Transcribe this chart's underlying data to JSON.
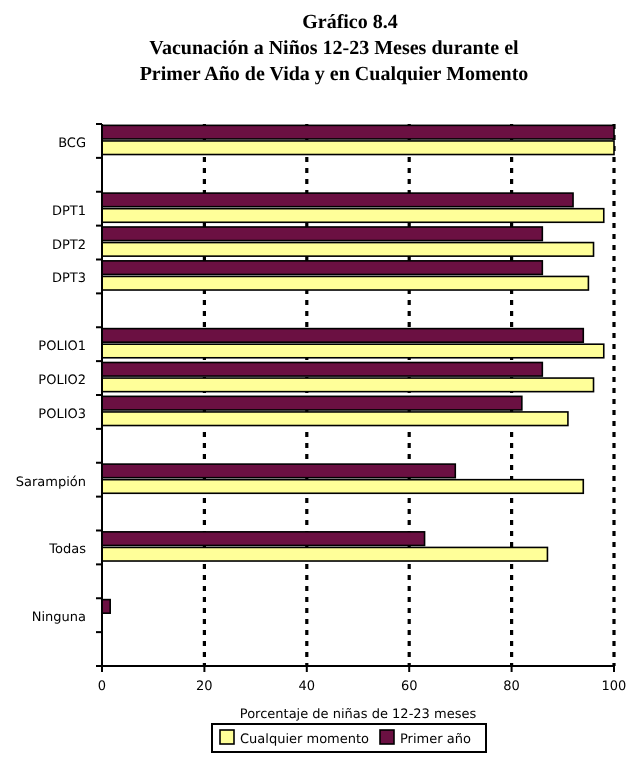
{
  "chart_data": {
    "type": "bar",
    "orientation": "horizontal",
    "title": "Gráfico 8.4",
    "subtitle": "Vacunación a Niños 12-23 Meses durante el\nPrimer Año de Vida y en Cualquier Momento",
    "xlabel": "Porcentaje de niñas de 12-23 meses",
    "categories": [
      "BCG",
      null,
      "DPT1",
      "DPT2",
      "DPT3",
      null,
      "POLIO1",
      "POLIO2",
      "POLIO3",
      null,
      "Sarampión",
      null,
      "Todas",
      null,
      "Ninguna",
      null
    ],
    "series": [
      {
        "name": "Primer año",
        "color": "#6b1042",
        "values": [
          100,
          null,
          92,
          86,
          86,
          null,
          94,
          86,
          82,
          null,
          69,
          null,
          63,
          null,
          1.6,
          null
        ]
      },
      {
        "name": "Cualquier momento",
        "color": "#ffff99",
        "values": [
          100,
          null,
          98,
          96,
          95,
          null,
          98,
          96,
          91,
          null,
          94,
          null,
          87,
          null,
          null,
          null
        ]
      }
    ],
    "xlim": [
      0,
      100
    ],
    "xticks": [
      0,
      20,
      40,
      60,
      80,
      100
    ],
    "grid": "x",
    "line_style": "dashed",
    "legend": "bottom"
  }
}
